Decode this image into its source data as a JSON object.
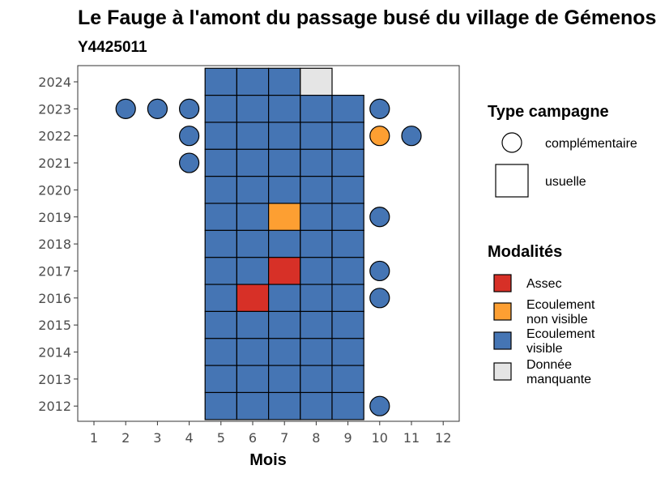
{
  "chart_data": {
    "type": "heatmap",
    "title": "Le Fauge à l'amont du passage busé du village de Gémenos",
    "subtitle": "Y4425011",
    "xlabel": "Mois",
    "ylabel": "",
    "x_ticks": [
      "1",
      "2",
      "3",
      "4",
      "5",
      "6",
      "7",
      "8",
      "9",
      "10",
      "11",
      "12"
    ],
    "y_ticks": [
      "2012",
      "2013",
      "2014",
      "2015",
      "2016",
      "2017",
      "2018",
      "2019",
      "2020",
      "2021",
      "2022",
      "2023",
      "2024"
    ],
    "xlim": [
      1,
      12
    ],
    "ylim": [
      2012,
      2024
    ],
    "grid": false,
    "colors": {
      "Assec": "#d73027",
      "Ecoulement non visible": "#fd9f32",
      "Ecoulement visible": "#4575b4",
      "Donnée manquante": "#e5e5e5"
    },
    "legend": {
      "type_title": "Type campagne",
      "type_items": [
        {
          "label": "complémentaire",
          "shape": "circle"
        },
        {
          "label": "usuelle",
          "shape": "square"
        }
      ],
      "mod_title": "Modalités",
      "mod_items": [
        {
          "label_lines": [
            "Assec"
          ],
          "key": "Assec"
        },
        {
          "label_lines": [
            "Ecoulement",
            "non visible"
          ],
          "key": "Ecoulement non visible"
        },
        {
          "label_lines": [
            "Ecoulement",
            "visible"
          ],
          "key": "Ecoulement visible"
        },
        {
          "label_lines": [
            "Donnée",
            "manquante"
          ],
          "key": "Donnée manquante"
        }
      ],
      "position": "right"
    },
    "usuelle": [
      {
        "year": 2024,
        "months": {
          "5": "Ecoulement visible",
          "6": "Ecoulement visible",
          "7": "Ecoulement visible",
          "8": "Donnée manquante"
        }
      },
      {
        "year": 2023,
        "months": {
          "5": "Ecoulement visible",
          "6": "Ecoulement visible",
          "7": "Ecoulement visible",
          "8": "Ecoulement visible",
          "9": "Ecoulement visible"
        }
      },
      {
        "year": 2022,
        "months": {
          "5": "Ecoulement visible",
          "6": "Ecoulement visible",
          "7": "Ecoulement visible",
          "8": "Ecoulement visible",
          "9": "Ecoulement visible"
        }
      },
      {
        "year": 2021,
        "months": {
          "5": "Ecoulement visible",
          "6": "Ecoulement visible",
          "7": "Ecoulement visible",
          "8": "Ecoulement visible",
          "9": "Ecoulement visible"
        }
      },
      {
        "year": 2020,
        "months": {
          "5": "Ecoulement visible",
          "6": "Ecoulement visible",
          "7": "Ecoulement visible",
          "8": "Ecoulement visible",
          "9": "Ecoulement visible"
        }
      },
      {
        "year": 2019,
        "months": {
          "5": "Ecoulement visible",
          "6": "Ecoulement visible",
          "7": "Ecoulement non visible",
          "8": "Ecoulement visible",
          "9": "Ecoulement visible"
        }
      },
      {
        "year": 2018,
        "months": {
          "5": "Ecoulement visible",
          "6": "Ecoulement visible",
          "7": "Ecoulement visible",
          "8": "Ecoulement visible",
          "9": "Ecoulement visible"
        }
      },
      {
        "year": 2017,
        "months": {
          "5": "Ecoulement visible",
          "6": "Ecoulement visible",
          "7": "Assec",
          "8": "Ecoulement visible",
          "9": "Ecoulement visible"
        }
      },
      {
        "year": 2016,
        "months": {
          "5": "Ecoulement visible",
          "6": "Assec",
          "7": "Ecoulement visible",
          "8": "Ecoulement visible",
          "9": "Ecoulement visible"
        }
      },
      {
        "year": 2015,
        "months": {
          "5": "Ecoulement visible",
          "6": "Ecoulement visible",
          "7": "Ecoulement visible",
          "8": "Ecoulement visible",
          "9": "Ecoulement visible"
        }
      },
      {
        "year": 2014,
        "months": {
          "5": "Ecoulement visible",
          "6": "Ecoulement visible",
          "7": "Ecoulement visible",
          "8": "Ecoulement visible",
          "9": "Ecoulement visible"
        }
      },
      {
        "year": 2013,
        "months": {
          "5": "Ecoulement visible",
          "6": "Ecoulement visible",
          "7": "Ecoulement visible",
          "8": "Ecoulement visible",
          "9": "Ecoulement visible"
        }
      },
      {
        "year": 2012,
        "months": {
          "5": "Ecoulement visible",
          "6": "Ecoulement visible",
          "7": "Ecoulement visible",
          "8": "Ecoulement visible",
          "9": "Ecoulement visible"
        }
      }
    ],
    "complementaire": [
      {
        "year": 2023,
        "month": 2,
        "modalite": "Ecoulement visible"
      },
      {
        "year": 2023,
        "month": 3,
        "modalite": "Ecoulement visible"
      },
      {
        "year": 2023,
        "month": 4,
        "modalite": "Ecoulement visible"
      },
      {
        "year": 2023,
        "month": 10,
        "modalite": "Ecoulement visible"
      },
      {
        "year": 2022,
        "month": 4,
        "modalite": "Ecoulement visible"
      },
      {
        "year": 2022,
        "month": 10,
        "modalite": "Ecoulement non visible"
      },
      {
        "year": 2022,
        "month": 11,
        "modalite": "Ecoulement visible"
      },
      {
        "year": 2021,
        "month": 4,
        "modalite": "Ecoulement visible"
      },
      {
        "year": 2019,
        "month": 10,
        "modalite": "Ecoulement visible"
      },
      {
        "year": 2017,
        "month": 10,
        "modalite": "Ecoulement visible"
      },
      {
        "year": 2016,
        "month": 10,
        "modalite": "Ecoulement visible"
      },
      {
        "year": 2012,
        "month": 10,
        "modalite": "Ecoulement visible"
      }
    ]
  }
}
